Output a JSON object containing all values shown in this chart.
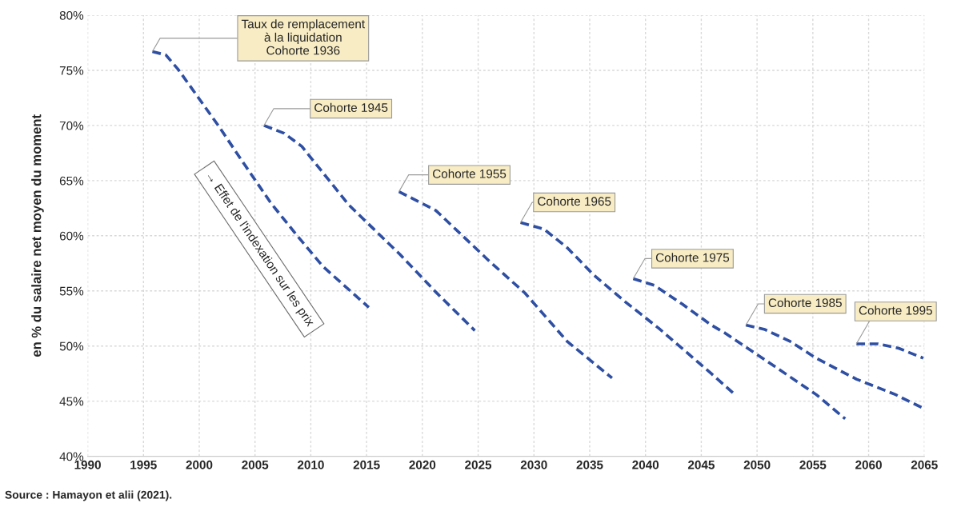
{
  "chart_data": {
    "type": "line",
    "ylabel": "en % du salaire net moyen du moment",
    "xlim": [
      1990,
      2065
    ],
    "xticks": [
      1990,
      1995,
      2000,
      2005,
      2010,
      2015,
      2020,
      2025,
      2030,
      2035,
      2040,
      2045,
      2050,
      2055,
      2060,
      2065
    ],
    "ylim": [
      40,
      80
    ],
    "yticks": [
      {
        "value": 40,
        "label": "40%"
      },
      {
        "value": 45,
        "label": "45%"
      },
      {
        "value": 50,
        "label": "50%"
      },
      {
        "value": 55,
        "label": "55%"
      },
      {
        "value": 60,
        "label": "60%"
      },
      {
        "value": 65,
        "label": "65%"
      },
      {
        "value": 70,
        "label": "70%"
      },
      {
        "value": 75,
        "label": "75%"
      },
      {
        "value": 80,
        "label": "80%"
      }
    ],
    "grid": true,
    "legend": false,
    "line_style": "dashed",
    "marker": "none",
    "series": [
      {
        "color": "#2e4fa3",
        "x": [
          1995.8,
          1997.0,
          1998.1,
          1999.8,
          2001.7,
          2004.1,
          2006.4,
          2008.7,
          2011.1,
          2015.2
        ],
        "values": [
          76.7,
          76.4,
          75.1,
          72.7,
          70.0,
          66.4,
          63.0,
          60.1,
          57.2,
          53.5
        ]
      },
      {
        "color": "#2e4fa3",
        "x": [
          2005.8,
          2007.6,
          2009.2,
          2011.1,
          2013.4,
          2018.0,
          2021.2,
          2024.7
        ],
        "values": [
          70.0,
          69.3,
          68.1,
          65.7,
          62.8,
          58.3,
          54.9,
          51.4
        ]
      },
      {
        "color": "#2e4fa3",
        "x": [
          2017.9,
          2021.2,
          2023.6,
          2026.0,
          2029.2,
          2033.0,
          2037.0
        ],
        "values": [
          64.0,
          62.3,
          60.0,
          57.7,
          54.8,
          50.4,
          47.1
        ]
      },
      {
        "color": "#2e4fa3",
        "x": [
          2028.8,
          2030.9,
          2033.0,
          2035.3,
          2038.2,
          2041.2,
          2045.9,
          2047.9
        ],
        "values": [
          61.2,
          60.6,
          58.9,
          56.5,
          54.0,
          51.6,
          47.5,
          45.7
        ]
      },
      {
        "color": "#2e4fa3",
        "x": [
          2038.9,
          2040.8,
          2043.3,
          2045.9,
          2047.1,
          2051.8,
          2055.3,
          2057.9
        ],
        "values": [
          56.1,
          55.5,
          53.8,
          51.9,
          51.2,
          48.0,
          45.6,
          43.4
        ]
      },
      {
        "color": "#2e4fa3",
        "x": [
          2049.0,
          2050.7,
          2053.0,
          2055.3,
          2058.9,
          2062.4,
          2064.8
        ],
        "values": [
          51.9,
          51.5,
          50.4,
          48.9,
          47.0,
          45.6,
          44.4
        ]
      },
      {
        "color": "#2e4fa3",
        "x": [
          2058.9,
          2060.8,
          2062.7,
          2064.9
        ],
        "values": [
          50.2,
          50.2,
          49.8,
          48.9
        ]
      }
    ],
    "annotations": [
      {
        "text": "Taux de remplacement\nà la liquidation\nCohorte 1936",
        "x": 1995.8,
        "y": 76.7
      },
      {
        "text": "Cohorte 1945",
        "x": 2005.8,
        "y": 70.0
      },
      {
        "text": "Cohorte 1955",
        "x": 2017.9,
        "y": 64.0
      },
      {
        "text": "Cohorte 1965",
        "x": 2028.8,
        "y": 61.2
      },
      {
        "text": "Cohorte 1975",
        "x": 2038.9,
        "y": 56.1
      },
      {
        "text": "Cohorte 1985",
        "x": 2049.0,
        "y": 51.9
      },
      {
        "text": "Cohorte 1995",
        "x": 2058.9,
        "y": 50.2
      },
      "→ Effet de l'indexation sur les prix",
      "Source : Hamayon et alii (2021)."
    ]
  }
}
